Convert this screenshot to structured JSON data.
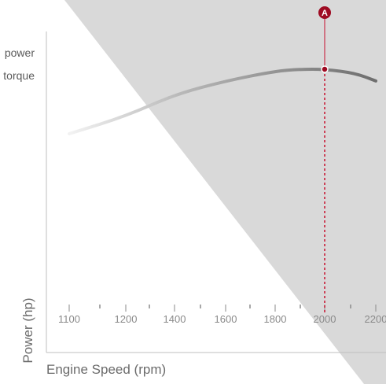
{
  "legend": {
    "items": [
      "power",
      "torque"
    ]
  },
  "axes": {
    "ylabel": "Power (hp)",
    "xlabel": "Engine Speed (rpm)"
  },
  "marker": {
    "label": "A",
    "x": 2000
  },
  "colors": {
    "accent": "#c8102e",
    "curve": "#777777",
    "shade": "#d9d9d9",
    "axis": "#bfbfbf",
    "tick_text": "#8a8a8a"
  },
  "chart_data": {
    "type": "line",
    "title": "",
    "xlabel": "Engine Speed (rpm)",
    "ylabel": "Power (hp)",
    "tick_labels": [
      "1100",
      "1200",
      "1400",
      "1600",
      "1800",
      "2000",
      "2200"
    ],
    "series": [
      {
        "name": "power",
        "x": [
          1100,
          1200,
          1400,
          1600,
          1800,
          1900,
          2000,
          2100,
          2200
        ],
        "y": [
          0.53,
          0.62,
          0.73,
          0.8,
          0.85,
          0.86,
          0.86,
          0.84,
          0.8
        ]
      }
    ],
    "highlight": {
      "label": "A",
      "x": 2000
    },
    "grid": false
  }
}
